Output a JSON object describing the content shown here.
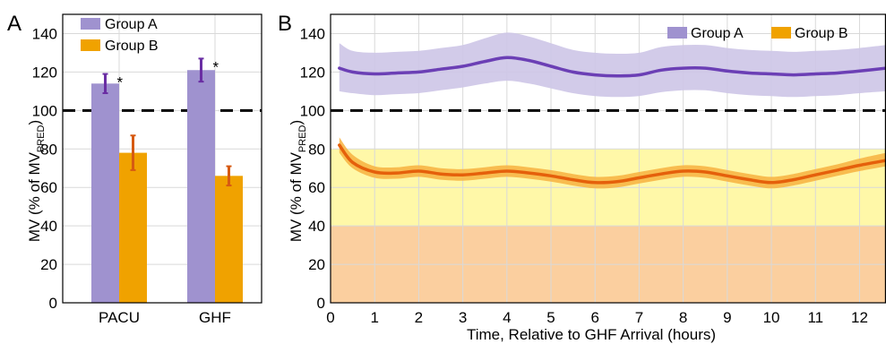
{
  "colors": {
    "group_a": "#9f92cf",
    "group_a_line": "#6b3fb5",
    "group_a_band": "#cdc5e7",
    "group_b": "#f0a200",
    "group_b_line": "#e5600b",
    "group_b_band": "#f7b23f",
    "grid": "#d9d9d9",
    "err_a": "#6a2ea3",
    "err_b": "#d65a12",
    "yellow_zone": "#fff8a8",
    "orange_zone": "#fbcf9f"
  },
  "chart_data": [
    {
      "panel_label": "A",
      "type": "bar",
      "categories": [
        "PACU",
        "GHF"
      ],
      "series": [
        {
          "name": "Group A",
          "values": [
            114,
            121
          ],
          "error": [
            5,
            6
          ]
        },
        {
          "name": "Group B",
          "values": [
            78,
            66
          ],
          "error": [
            9,
            5
          ]
        }
      ],
      "significance": [
        "*",
        "*"
      ],
      "reference_line": 100,
      "ylabel_main": "MV (% of MV",
      "ylabel_sub": "PRED",
      "ylabel_end": ")",
      "ylim": [
        0,
        150
      ],
      "yticks": [
        0,
        20,
        40,
        60,
        80,
        100,
        120,
        140
      ],
      "grid": true,
      "legend": "top-left"
    },
    {
      "panel_label": "B",
      "type": "line",
      "xlabel": "Time, Relative to GHF Arrival (hours)",
      "ylabel_main": "MV (% of MV",
      "ylabel_sub": "PRED",
      "ylabel_end": ")",
      "xlim": [
        0,
        12.6
      ],
      "ylim": [
        0,
        150
      ],
      "xticks": [
        0,
        1,
        2,
        3,
        4,
        5,
        6,
        7,
        8,
        9,
        10,
        11,
        12
      ],
      "yticks": [
        0,
        20,
        40,
        60,
        80,
        100,
        120,
        140
      ],
      "reference_line": 100,
      "zones": [
        {
          "from": 0,
          "to": 40,
          "color": "orange_zone"
        },
        {
          "from": 40,
          "to": 80,
          "color": "yellow_zone"
        }
      ],
      "grid": true,
      "legend": "top-right",
      "x": [
        0.2,
        0.5,
        1,
        1.5,
        2,
        2.5,
        3,
        3.5,
        4,
        4.5,
        5,
        5.5,
        6,
        6.5,
        7,
        7.5,
        8,
        8.5,
        9,
        9.5,
        10,
        10.5,
        11,
        11.5,
        12,
        12.6
      ],
      "series": [
        {
          "name": "Group A",
          "values": [
            122,
            120,
            119,
            119.5,
            120,
            121.5,
            123,
            125.5,
            127.5,
            126,
            123,
            120,
            118.5,
            118,
            118.5,
            121,
            122,
            122,
            120.5,
            119.5,
            119,
            118.5,
            119,
            119.5,
            120.5,
            122
          ],
          "lower": [
            110,
            109,
            108,
            108.5,
            109,
            110.5,
            112,
            114,
            115.5,
            114,
            111.5,
            109,
            107.5,
            107,
            107.5,
            109.5,
            110.5,
            110.5,
            109,
            108,
            107.5,
            107,
            107.5,
            108,
            109,
            110
          ],
          "upper": [
            135,
            131,
            130,
            130.5,
            131,
            132.5,
            134,
            137.5,
            140.5,
            138.5,
            135,
            131.5,
            130,
            129.5,
            130,
            133,
            134,
            134,
            132.5,
            131.5,
            131,
            130.5,
            131,
            131.5,
            132.5,
            134
          ]
        },
        {
          "name": "Group B",
          "values": [
            82,
            73,
            68,
            67.5,
            68.5,
            67,
            66.5,
            67.5,
            68.5,
            67.5,
            66,
            64,
            62.5,
            63,
            65,
            67,
            68.5,
            68,
            66,
            64,
            62.5,
            64,
            66.5,
            69,
            71.5,
            74
          ],
          "lower": [
            78,
            70,
            65,
            64.5,
            65.5,
            64,
            63.5,
            64.5,
            65.5,
            64.5,
            63,
            61,
            59.5,
            60,
            62,
            64,
            65.5,
            65,
            63,
            61,
            59.5,
            61,
            63.5,
            66,
            68.5,
            71
          ],
          "upper": [
            86,
            77,
            71,
            70.5,
            71.5,
            70,
            69.5,
            70.5,
            71.5,
            70.5,
            69,
            67,
            65.5,
            66,
            68,
            70,
            71.5,
            71,
            69,
            67,
            65.5,
            67,
            69.5,
            72,
            75,
            78
          ]
        }
      ]
    }
  ]
}
